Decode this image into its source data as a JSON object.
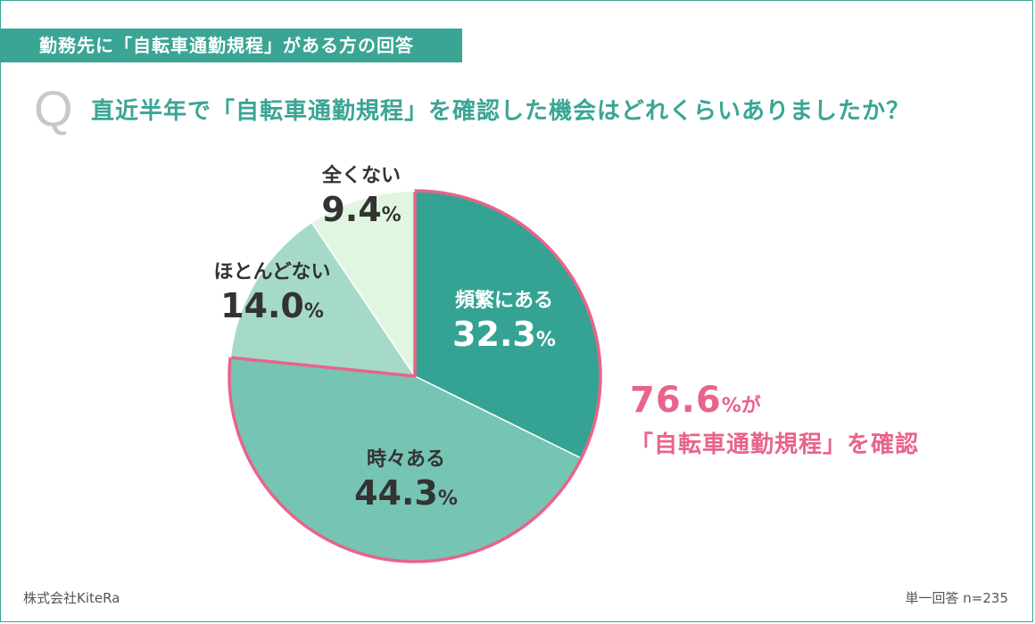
{
  "header": {
    "banner": "勤務先に「自転車通勤規程」がある方の回答",
    "q_mark": "Q",
    "question": "直近半年で「自転車通勤規程」を確認した機会はどれくらいありましたか？"
  },
  "chart_data": {
    "type": "pie",
    "slices": [
      {
        "label": "頻繁にある",
        "value": 32.3,
        "display": "32.3",
        "color": "#35a394"
      },
      {
        "label": "時々ある",
        "value": 44.3,
        "display": "44.3",
        "color": "#76c4b4"
      },
      {
        "label": "ほとんどない",
        "value": 14.0,
        "display": "14.0",
        "color": "#a6dac8"
      },
      {
        "label": "全くない",
        "value": 9.4,
        "display": "9.4",
        "color": "#e1f6e1"
      }
    ],
    "unit": "%",
    "highlight": {
      "slices": [
        0,
        1
      ],
      "color": "#e8648a"
    }
  },
  "callout": {
    "value": "76.6",
    "unit_suffix": "%が",
    "text": "「自転車通勤規程」を確認"
  },
  "footer": {
    "company": "株式会社KiteRa",
    "note": "単一回答 n=235"
  }
}
